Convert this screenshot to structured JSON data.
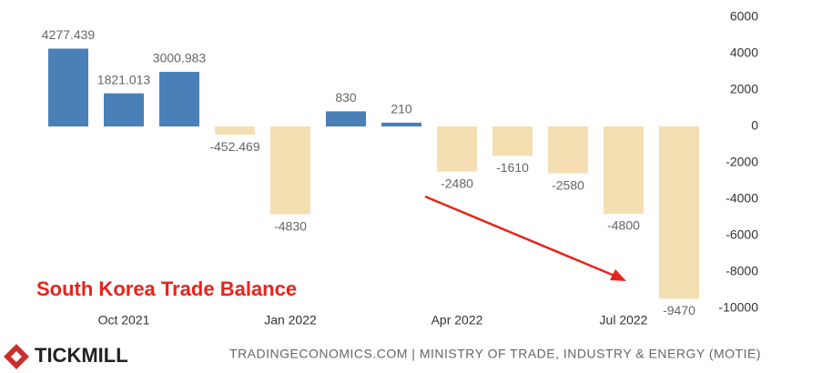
{
  "chart_data": {
    "type": "bar",
    "title": "South Korea Trade Balance",
    "source": "TRADINGECONOMICS.COM | MINISTRY OF TRADE, INDUSTRY & ENERGY (MOTIE)",
    "brand": "TICKMILL",
    "categories": [
      null,
      "Oct 2021",
      null,
      null,
      "Jan 2022",
      null,
      null,
      "Apr 2022",
      null,
      null,
      "Jul 2022",
      null
    ],
    "values": [
      4277.439,
      1821.013,
      3000.983,
      -452.469,
      -4830,
      830,
      210,
      -2480,
      -1610,
      -2580,
      -4800,
      -9470
    ],
    "positive_color": "#4a80b8",
    "negative_color": "#f4dfb3",
    "title_color": "#e8231b",
    "ylim": [
      -10000,
      6000
    ],
    "yticks": [
      6000,
      4000,
      2000,
      0,
      -2000,
      -4000,
      -6000,
      -8000,
      -10000
    ],
    "grid": false
  }
}
